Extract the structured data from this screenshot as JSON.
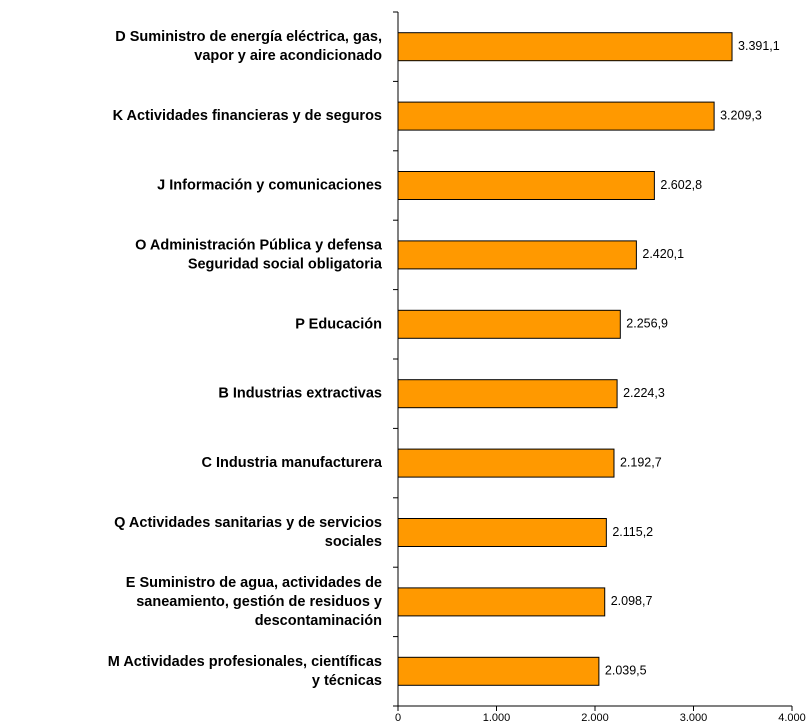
{
  "chart_data": {
    "type": "bar",
    "orientation": "horizontal",
    "categories": [
      "D  Suministro de energía eléctrica, gas,\nvapor y aire acondicionado",
      "K  Actividades financieras y de seguros",
      "J  Información y comunicaciones",
      "O  Administración Pública y defensa\nSeguridad social obligatoria",
      "P  Educación",
      "B  Industrias extractivas",
      "C  Industria manufacturera",
      "Q  Actividades sanitarias y de servicios\nsociales",
      "E  Suministro de agua, actividades de\nsaneamiento, gestión de residuos y\ndescontaminación",
      "M  Actividades profesionales, científicas\ny técnicas"
    ],
    "values": [
      3391.1,
      3209.3,
      2602.8,
      2420.1,
      2256.9,
      2224.3,
      2192.7,
      2115.2,
      2098.7,
      2039.5
    ],
    "value_labels": [
      "3.391,1",
      "3.209,3",
      "2.602,8",
      "2.420,1",
      "2.256,9",
      "2.224,3",
      "2.192,7",
      "2.115,2",
      "2.098,7",
      "2.039,5"
    ],
    "color": "#ff9900",
    "xlim": [
      0,
      4000
    ],
    "xticks": [
      0,
      {
        "value": 1000,
        "label": "1.000"
      },
      {
        "value": 2000,
        "label": "2.000"
      },
      {
        "value": 3000,
        "label": "3.000"
      },
      {
        "value": 4000,
        "label": "4.000"
      }
    ]
  }
}
